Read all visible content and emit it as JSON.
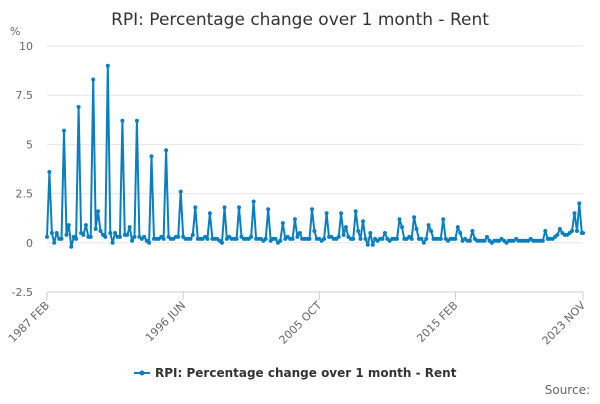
{
  "chart_data": {
    "type": "line",
    "title": "RPI: Percentage change over 1 month - Rent",
    "ylabel": "%",
    "xlabel": "",
    "ylim": [
      -2.5,
      10
    ],
    "yticks": [
      "-2.5",
      "0",
      "2.5",
      "5",
      "7.5",
      "10"
    ],
    "x_ticks": [
      {
        "label": "1987 FEB",
        "t": 1987.083
      },
      {
        "label": "1996 JUN",
        "t": 1996.417
      },
      {
        "label": "2005 OCT",
        "t": 2005.75
      },
      {
        "label": "2015 FEB",
        "t": 2015.083
      },
      {
        "label": "2023 NOV",
        "t": 2023.833
      }
    ],
    "xlim": [
      1987.083,
      2023.833
    ],
    "grid": true,
    "legend_position": "bottom",
    "series": [
      {
        "name": "RPI: Percentage change over 1 month - Rent",
        "color": "#0a7fbf",
        "points": [
          [
            1987.083,
            0.3
          ],
          [
            1987.25,
            3.6
          ],
          [
            1987.42,
            0.5
          ],
          [
            1987.58,
            0.0
          ],
          [
            1987.75,
            0.5
          ],
          [
            1987.92,
            0.2
          ],
          [
            1988.08,
            0.2
          ],
          [
            1988.25,
            5.7
          ],
          [
            1988.42,
            0.4
          ],
          [
            1988.58,
            0.9
          ],
          [
            1988.75,
            -0.2
          ],
          [
            1988.92,
            0.3
          ],
          [
            1989.08,
            0.2
          ],
          [
            1989.25,
            6.9
          ],
          [
            1989.42,
            0.5
          ],
          [
            1989.58,
            0.4
          ],
          [
            1989.75,
            0.9
          ],
          [
            1989.92,
            0.3
          ],
          [
            1990.08,
            0.3
          ],
          [
            1990.25,
            8.3
          ],
          [
            1990.42,
            0.7
          ],
          [
            1990.58,
            1.6
          ],
          [
            1990.75,
            0.6
          ],
          [
            1990.92,
            0.4
          ],
          [
            1991.08,
            0.3
          ],
          [
            1991.25,
            9.0
          ],
          [
            1991.42,
            0.5
          ],
          [
            1991.58,
            0.0
          ],
          [
            1991.75,
            0.5
          ],
          [
            1991.92,
            0.3
          ],
          [
            1992.08,
            0.3
          ],
          [
            1992.25,
            6.2
          ],
          [
            1992.42,
            0.4
          ],
          [
            1992.58,
            0.4
          ],
          [
            1992.75,
            0.8
          ],
          [
            1992.92,
            0.1
          ],
          [
            1993.08,
            0.3
          ],
          [
            1993.25,
            6.2
          ],
          [
            1993.42,
            0.3
          ],
          [
            1993.58,
            0.2
          ],
          [
            1993.75,
            0.3
          ],
          [
            1993.92,
            0.1
          ],
          [
            1994.08,
            0.0
          ],
          [
            1994.25,
            4.4
          ],
          [
            1994.42,
            0.2
          ],
          [
            1994.58,
            0.2
          ],
          [
            1994.75,
            0.2
          ],
          [
            1994.92,
            0.3
          ],
          [
            1995.08,
            0.2
          ],
          [
            1995.25,
            4.7
          ],
          [
            1995.42,
            0.3
          ],
          [
            1995.58,
            0.2
          ],
          [
            1995.75,
            0.2
          ],
          [
            1995.92,
            0.3
          ],
          [
            1996.08,
            0.3
          ],
          [
            1996.25,
            2.6
          ],
          [
            1996.42,
            0.3
          ],
          [
            1996.58,
            0.2
          ],
          [
            1996.75,
            0.2
          ],
          [
            1996.92,
            0.2
          ],
          [
            1997.08,
            0.4
          ],
          [
            1997.25,
            1.8
          ],
          [
            1997.42,
            0.2
          ],
          [
            1997.58,
            0.2
          ],
          [
            1997.75,
            0.2
          ],
          [
            1997.92,
            0.3
          ],
          [
            1998.08,
            0.2
          ],
          [
            1998.25,
            1.5
          ],
          [
            1998.42,
            0.2
          ],
          [
            1998.58,
            0.2
          ],
          [
            1998.75,
            0.2
          ],
          [
            1998.92,
            0.1
          ],
          [
            1999.08,
            0.0
          ],
          [
            1999.25,
            1.8
          ],
          [
            1999.42,
            0.2
          ],
          [
            1999.58,
            0.3
          ],
          [
            1999.75,
            0.2
          ],
          [
            1999.92,
            0.2
          ],
          [
            2000.08,
            0.2
          ],
          [
            2000.25,
            1.8
          ],
          [
            2000.42,
            0.3
          ],
          [
            2000.58,
            0.2
          ],
          [
            2000.75,
            0.2
          ],
          [
            2000.92,
            0.2
          ],
          [
            2001.08,
            0.3
          ],
          [
            2001.25,
            2.1
          ],
          [
            2001.42,
            0.2
          ],
          [
            2001.58,
            0.2
          ],
          [
            2001.75,
            0.2
          ],
          [
            2001.92,
            0.1
          ],
          [
            2002.08,
            0.2
          ],
          [
            2002.25,
            1.7
          ],
          [
            2002.42,
            0.1
          ],
          [
            2002.58,
            0.2
          ],
          [
            2002.75,
            0.2
          ],
          [
            2002.92,
            0.0
          ],
          [
            2003.08,
            0.1
          ],
          [
            2003.25,
            1.0
          ],
          [
            2003.42,
            0.2
          ],
          [
            2003.58,
            0.3
          ],
          [
            2003.75,
            0.2
          ],
          [
            2003.92,
            0.2
          ],
          [
            2004.08,
            1.2
          ],
          [
            2004.25,
            0.3
          ],
          [
            2004.42,
            0.5
          ],
          [
            2004.58,
            0.2
          ],
          [
            2004.75,
            0.2
          ],
          [
            2004.92,
            0.2
          ],
          [
            2005.08,
            0.2
          ],
          [
            2005.25,
            1.7
          ],
          [
            2005.42,
            0.6
          ],
          [
            2005.58,
            0.2
          ],
          [
            2005.75,
            0.2
          ],
          [
            2005.92,
            0.1
          ],
          [
            2006.08,
            0.2
          ],
          [
            2006.25,
            1.5
          ],
          [
            2006.42,
            0.3
          ],
          [
            2006.58,
            0.3
          ],
          [
            2006.75,
            0.2
          ],
          [
            2006.92,
            0.2
          ],
          [
            2007.08,
            0.3
          ],
          [
            2007.25,
            1.5
          ],
          [
            2007.42,
            0.4
          ],
          [
            2007.58,
            0.8
          ],
          [
            2007.75,
            0.3
          ],
          [
            2007.92,
            0.2
          ],
          [
            2008.08,
            0.2
          ],
          [
            2008.25,
            1.6
          ],
          [
            2008.42,
            0.6
          ],
          [
            2008.58,
            0.2
          ],
          [
            2008.75,
            1.1
          ],
          [
            2008.92,
            0.2
          ],
          [
            2009.08,
            -0.1
          ],
          [
            2009.25,
            0.5
          ],
          [
            2009.42,
            -0.1
          ],
          [
            2009.58,
            0.2
          ],
          [
            2009.75,
            0.1
          ],
          [
            2009.92,
            0.2
          ],
          [
            2010.08,
            0.2
          ],
          [
            2010.25,
            0.5
          ],
          [
            2010.42,
            0.2
          ],
          [
            2010.58,
            0.1
          ],
          [
            2010.75,
            0.2
          ],
          [
            2010.92,
            0.2
          ],
          [
            2011.08,
            0.2
          ],
          [
            2011.25,
            1.2
          ],
          [
            2011.42,
            0.8
          ],
          [
            2011.58,
            0.2
          ],
          [
            2011.75,
            0.2
          ],
          [
            2011.92,
            0.3
          ],
          [
            2012.08,
            0.2
          ],
          [
            2012.25,
            1.3
          ],
          [
            2012.42,
            0.7
          ],
          [
            2012.58,
            0.2
          ],
          [
            2012.75,
            0.2
          ],
          [
            2012.92,
            0.0
          ],
          [
            2013.08,
            0.2
          ],
          [
            2013.25,
            0.9
          ],
          [
            2013.42,
            0.6
          ],
          [
            2013.58,
            0.2
          ],
          [
            2013.75,
            0.2
          ],
          [
            2013.92,
            0.2
          ],
          [
            2014.08,
            0.2
          ],
          [
            2014.25,
            1.2
          ],
          [
            2014.42,
            0.2
          ],
          [
            2014.58,
            0.1
          ],
          [
            2014.75,
            0.2
          ],
          [
            2014.92,
            0.2
          ],
          [
            2015.08,
            0.2
          ],
          [
            2015.25,
            0.8
          ],
          [
            2015.42,
            0.5
          ],
          [
            2015.58,
            0.1
          ],
          [
            2015.75,
            0.2
          ],
          [
            2015.92,
            0.1
          ],
          [
            2016.08,
            0.1
          ],
          [
            2016.25,
            0.6
          ],
          [
            2016.42,
            0.2
          ],
          [
            2016.58,
            0.1
          ],
          [
            2016.75,
            0.1
          ],
          [
            2016.92,
            0.1
          ],
          [
            2017.08,
            0.1
          ],
          [
            2017.25,
            0.3
          ],
          [
            2017.42,
            0.1
          ],
          [
            2017.58,
            0.0
          ],
          [
            2017.75,
            0.1
          ],
          [
            2017.92,
            0.1
          ],
          [
            2018.08,
            0.1
          ],
          [
            2018.25,
            0.2
          ],
          [
            2018.42,
            0.1
          ],
          [
            2018.58,
            0.0
          ],
          [
            2018.75,
            0.1
          ],
          [
            2018.92,
            0.1
          ],
          [
            2019.08,
            0.1
          ],
          [
            2019.25,
            0.2
          ],
          [
            2019.42,
            0.1
          ],
          [
            2019.58,
            0.1
          ],
          [
            2019.75,
            0.1
          ],
          [
            2019.92,
            0.1
          ],
          [
            2020.08,
            0.1
          ],
          [
            2020.25,
            0.2
          ],
          [
            2020.42,
            0.1
          ],
          [
            2020.58,
            0.1
          ],
          [
            2020.75,
            0.1
          ],
          [
            2020.92,
            0.1
          ],
          [
            2021.08,
            0.1
          ],
          [
            2021.25,
            0.6
          ],
          [
            2021.42,
            0.2
          ],
          [
            2021.58,
            0.2
          ],
          [
            2021.75,
            0.2
          ],
          [
            2021.92,
            0.3
          ],
          [
            2022.08,
            0.4
          ],
          [
            2022.25,
            0.7
          ],
          [
            2022.42,
            0.5
          ],
          [
            2022.58,
            0.4
          ],
          [
            2022.75,
            0.4
          ],
          [
            2022.92,
            0.5
          ],
          [
            2023.08,
            0.6
          ],
          [
            2023.25,
            1.5
          ],
          [
            2023.42,
            0.6
          ],
          [
            2023.58,
            2.0
          ],
          [
            2023.75,
            0.5
          ],
          [
            2023.833,
            0.5
          ]
        ]
      }
    ]
  },
  "footer": {
    "source_label": "Source:"
  }
}
